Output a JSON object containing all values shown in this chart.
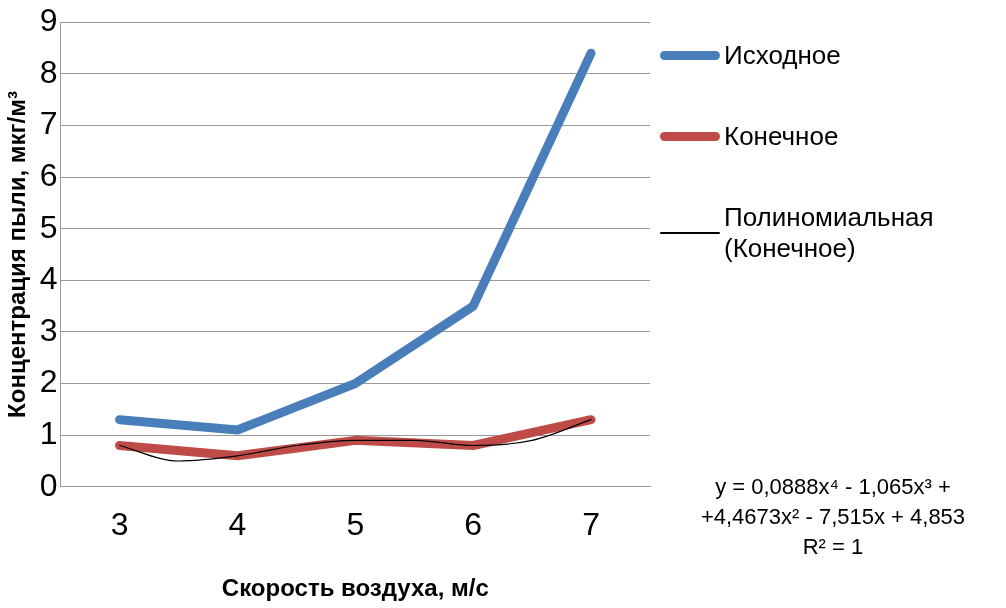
{
  "chart_data": {
    "type": "line",
    "xlabel": "Скорость воздуха, м/с",
    "ylabel": "Концентрация пыли, мкг/м³",
    "x": [
      3,
      4,
      5,
      6,
      7
    ],
    "xlim": [
      2.5,
      7.5
    ],
    "xticks": [
      3,
      4,
      5,
      6,
      7
    ],
    "ylim": [
      0,
      9
    ],
    "yticks": [
      0,
      1,
      2,
      3,
      4,
      5,
      6,
      7,
      8,
      9
    ],
    "grid": "y",
    "legend": "right",
    "marker": "none",
    "series": [
      {
        "name": "Исходное",
        "color": "#4a7ebb",
        "values": [
          1.3,
          1.1,
          2.0,
          3.5,
          8.4
        ]
      },
      {
        "name": "Конечное",
        "color": "#be4b48",
        "values": [
          0.8,
          0.6,
          0.9,
          0.8,
          1.3
        ]
      },
      {
        "name": "Полиномиальная (Конечное)",
        "color": "#000000",
        "x": [
          3,
          3.5,
          4,
          4.5,
          5,
          5.5,
          6,
          6.5,
          7
        ],
        "values": [
          0.8,
          0.5,
          0.6,
          0.8,
          0.9,
          0.9,
          0.8,
          0.9,
          1.3
        ]
      }
    ],
    "annotations": [
      "y = 0,0888x⁴ - 1,065x³ +",
      "+4,4673x² - 7,515x + 4,853",
      "R² = 1"
    ]
  }
}
